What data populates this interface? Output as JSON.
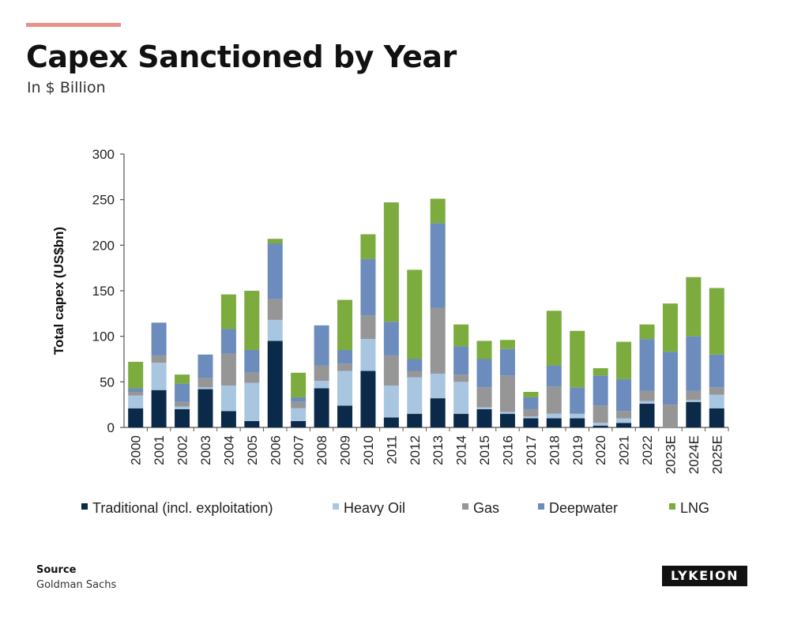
{
  "header": {
    "title": "Capex Sanctioned by Year",
    "subtitle": "In $ Billion"
  },
  "footer": {
    "source_label": "Source",
    "source_value": "Goldman Sachs",
    "logo_text": "LYKEION"
  },
  "colors": {
    "accent_line": "#e8908a",
    "Traditional": "#0b2a4a",
    "Heavy Oil": "#a9c6e0",
    "Gas": "#969696",
    "Deepwater": "#6b8cbc",
    "LNG": "#7cab3e"
  },
  "chart_data": {
    "type": "bar",
    "stacked": true,
    "ylabel": "Total capex (US$bn)",
    "xlabel": "",
    "ylim": [
      0,
      300
    ],
    "yticks": [
      0,
      50,
      100,
      150,
      200,
      250,
      300
    ],
    "grid": false,
    "legend_position": "bottom",
    "categories": [
      "2000",
      "2001",
      "2002",
      "2003",
      "2004",
      "2005",
      "2006",
      "2007",
      "2008",
      "2009",
      "2010",
      "2011",
      "2012",
      "2013",
      "2014",
      "2015",
      "2016",
      "2017",
      "2018",
      "2019",
      "2020",
      "2021",
      "2022",
      "2023E",
      "2024E",
      "2025E"
    ],
    "series": [
      {
        "name": "Traditional (incl. exploitation)",
        "key": "Traditional",
        "values": [
          21,
          41,
          20,
          42,
          18,
          7,
          95,
          7,
          43,
          24,
          62,
          11,
          15,
          32,
          15,
          20,
          15,
          10,
          10,
          10,
          2,
          5,
          26,
          0,
          28,
          21
        ]
      },
      {
        "name": "Heavy Oil",
        "key": "Heavy Oil",
        "values": [
          14,
          30,
          3,
          2,
          28,
          42,
          23,
          14,
          8,
          38,
          35,
          35,
          40,
          27,
          35,
          2,
          2,
          2,
          5,
          5,
          3,
          5,
          3,
          0,
          2,
          15
        ]
      },
      {
        "name": "Gas",
        "key": "Gas",
        "values": [
          4,
          8,
          5,
          10,
          35,
          11,
          23,
          7,
          17,
          8,
          26,
          33,
          7,
          72,
          8,
          22,
          40,
          8,
          30,
          0,
          19,
          8,
          11,
          25,
          10,
          8
        ]
      },
      {
        "name": "Deepwater",
        "key": "Deepwater",
        "values": [
          4,
          36,
          20,
          26,
          27,
          25,
          61,
          5,
          44,
          15,
          62,
          37,
          13,
          93,
          31,
          31,
          29,
          13,
          23,
          29,
          33,
          35,
          57,
          58,
          60,
          36
        ]
      },
      {
        "name": "LNG",
        "key": "LNG",
        "values": [
          29,
          0,
          10,
          0,
          38,
          65,
          5,
          27,
          0,
          55,
          27,
          131,
          98,
          27,
          24,
          20,
          10,
          6,
          60,
          62,
          8,
          41,
          16,
          53,
          65,
          73
        ]
      }
    ]
  }
}
